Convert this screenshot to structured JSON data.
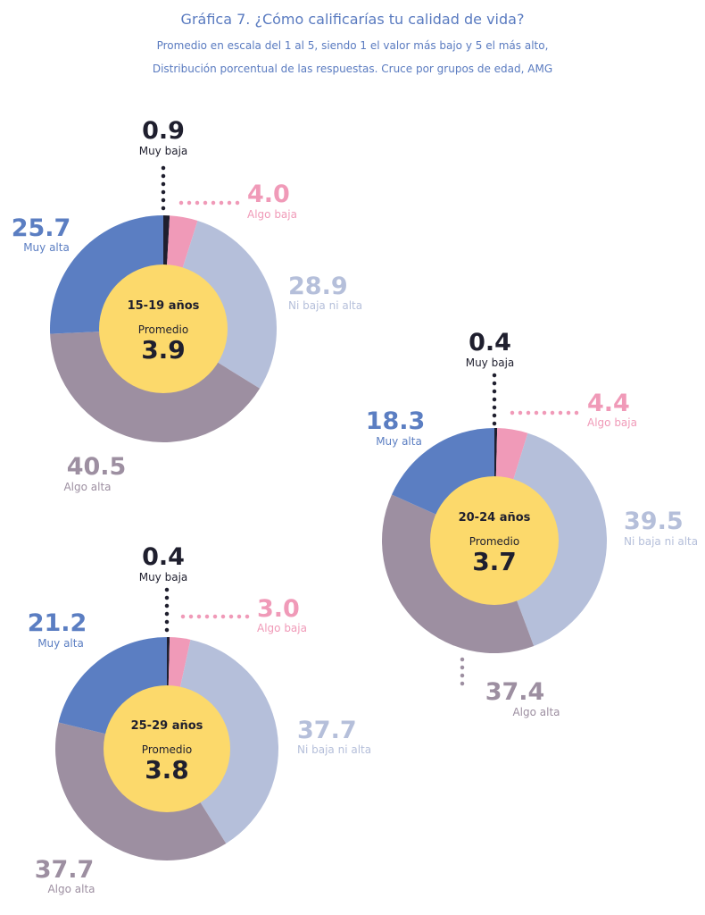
{
  "header": {
    "title": "Gráfica 7. ¿Cómo calificarías tu calidad de vida?",
    "subtitle_1": "Promedio en escala del 1 al 5, siendo 1 el valor más bajo y 5 el más alto,",
    "subtitle_2": "Distribución porcentual de las respuestas. Cruce por grupos de edad, AMG"
  },
  "colors": {
    "muy_baja": "#1f1f2e",
    "algo_baja": "#f09ab8",
    "ni_baja_ni_alta": "#b5bfda",
    "algo_alta": "#9d8fa1",
    "muy_alta": "#5b7ec2",
    "center": "#fcd96b",
    "text_dark": "#1f1f2e"
  },
  "chart_data": [
    {
      "type": "pie",
      "group": "15-19 años",
      "average_label": "Promedio",
      "average": "3.9",
      "categories": [
        "Muy baja",
        "Algo baja",
        "Ni baja ni alta",
        "Algo alta",
        "Muy alta"
      ],
      "values": [
        0.9,
        4.0,
        28.9,
        40.5,
        25.7
      ],
      "value_labels": [
        "0.9",
        "4.0",
        "28.9",
        "40.5",
        "25.7"
      ]
    },
    {
      "type": "pie",
      "group": "20-24 años",
      "average_label": "Promedio",
      "average": "3.7",
      "categories": [
        "Muy baja",
        "Algo baja",
        "Ni baja ni alta",
        "Algo alta",
        "Muy alta"
      ],
      "values": [
        0.4,
        4.4,
        39.5,
        37.4,
        18.3
      ],
      "value_labels": [
        "0.4",
        "4.4",
        "39.5",
        "37.4",
        "18.3"
      ]
    },
    {
      "type": "pie",
      "group": "25-29 años",
      "average_label": "Promedio",
      "average": "3.8",
      "categories": [
        "Muy baja",
        "Algo baja",
        "Ni baja ni alta",
        "Algo alta",
        "Muy alta"
      ],
      "values": [
        0.4,
        3.0,
        37.7,
        37.7,
        21.2
      ],
      "value_labels": [
        "0.4",
        "3.0",
        "37.7",
        "37.7",
        "21.2"
      ]
    }
  ]
}
